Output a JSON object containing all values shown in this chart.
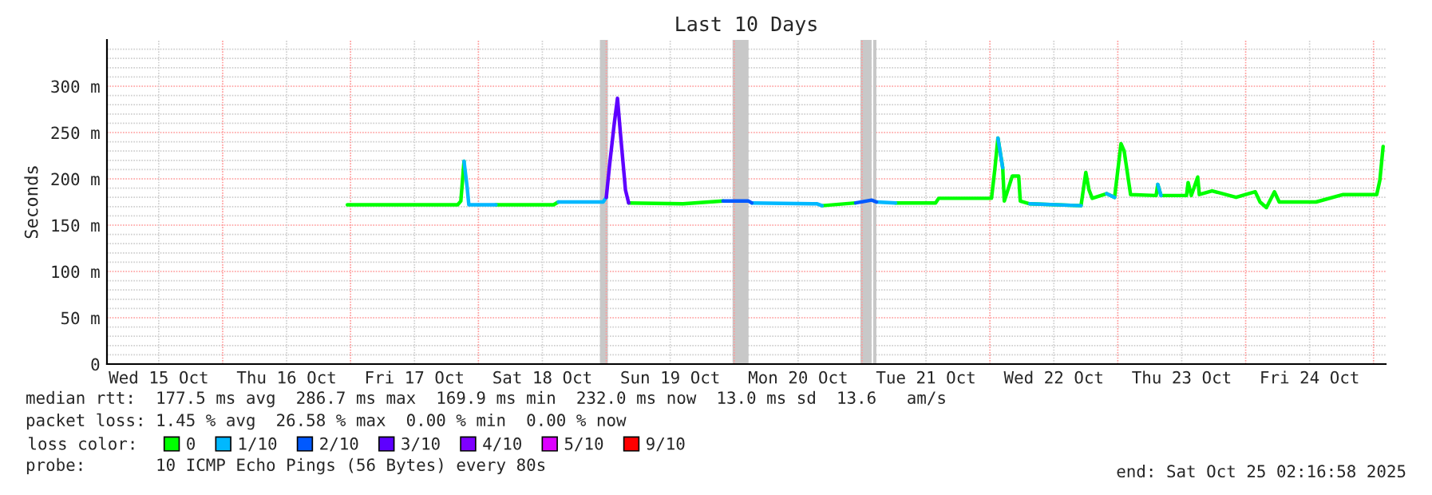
{
  "chart_data": {
    "type": "line",
    "title": "Last 10 Days",
    "ylabel": "Seconds",
    "x": [
      "2025-10-16T23:24",
      "2025-10-17T20:06",
      "2025-10-17T20:42",
      "2025-10-17T21:18",
      "2025-10-17T21:54",
      "2025-10-17T22:12",
      "2025-10-18T01:12",
      "2025-10-18T03:18",
      "2025-10-18T14:06",
      "2025-10-18T15:00",
      "2025-10-18T23:24",
      "2025-10-19T00:00",
      "2025-10-19T00:36",
      "2025-10-19T01:30",
      "2025-10-19T02:06",
      "2025-10-19T02:42",
      "2025-10-19T03:36",
      "2025-10-19T04:12",
      "2025-10-19T14:24",
      "2025-10-19T21:54",
      "2025-10-20T02:42",
      "2025-10-20T03:18",
      "2025-10-20T15:36",
      "2025-10-20T16:30",
      "2025-10-20T22:48",
      "2025-10-21T01:48",
      "2025-10-21T02:42",
      "2025-10-21T06:18",
      "2025-10-21T13:48",
      "2025-10-21T14:24",
      "2025-10-22T00:18",
      "2025-10-22T00:54",
      "2025-10-22T01:30",
      "2025-10-22T02:24",
      "2025-10-22T02:42",
      "2025-10-22T04:12",
      "2025-10-22T05:24",
      "2025-10-22T05:42",
      "2025-10-22T07:30",
      "2025-10-22T17:06",
      "2025-10-22T18:00",
      "2025-10-22T18:36",
      "2025-10-22T19:12",
      "2025-10-22T21:54",
      "2025-10-22T23:24",
      "2025-10-23T00:36",
      "2025-10-23T01:12",
      "2025-10-23T02:24",
      "2025-10-23T07:12",
      "2025-10-23T07:30",
      "2025-10-23T08:06",
      "2025-10-23T12:54",
      "2025-10-23T13:12",
      "2025-10-23T13:48",
      "2025-10-23T15:00",
      "2025-10-23T15:18",
      "2025-10-23T17:42",
      "2025-10-23T22:12",
      "2025-10-24T01:48",
      "2025-10-24T02:42",
      "2025-10-24T03:54",
      "2025-10-24T05:24",
      "2025-10-24T06:18",
      "2025-10-24T13:12",
      "2025-10-24T18:18",
      "2025-10-25T00:36",
      "2025-10-25T01:12",
      "2025-10-25T01:48"
    ],
    "series": [
      {
        "name": "0",
        "color": "#00ff00",
        "values": [
          172,
          172,
          176,
          219,
          null,
          null,
          null,
          172,
          172,
          175,
          null,
          null,
          null,
          null,
          null,
          null,
          null,
          174,
          173,
          176,
          null,
          null,
          null,
          171,
          174,
          null,
          null,
          174,
          174,
          179,
          179,
          209,
          244,
          212,
          176,
          203,
          203,
          176,
          173,
          171,
          207,
          188,
          179,
          184,
          180,
          238,
          230,
          183,
          182,
          194,
          182,
          182,
          196,
          182,
          202,
          183,
          187,
          180,
          186,
          175,
          169,
          186,
          175,
          175,
          183,
          183,
          199,
          235
        ]
      },
      {
        "name": "1/10",
        "color": "#00b8ff",
        "values": [
          null,
          null,
          null,
          219,
          190,
          172,
          172,
          172,
          null,
          175,
          175,
          180,
          null,
          null,
          null,
          null,
          null,
          null,
          null,
          null,
          null,
          174,
          173,
          171,
          null,
          null,
          175,
          174,
          null,
          null,
          null,
          null,
          244,
          212,
          null,
          null,
          null,
          null,
          173,
          171,
          null,
          null,
          null,
          184,
          180,
          null,
          null,
          null,
          null,
          194,
          182,
          null,
          null,
          null,
          null,
          null,
          null,
          null,
          null,
          null,
          null,
          null,
          null,
          null,
          null,
          null,
          null,
          null
        ]
      },
      {
        "name": "2/10",
        "color": "#0059ff",
        "values": [
          null,
          null,
          null,
          null,
          null,
          null,
          null,
          null,
          null,
          null,
          null,
          null,
          null,
          null,
          null,
          null,
          null,
          null,
          null,
          176,
          176,
          174,
          null,
          null,
          174,
          177,
          175,
          null,
          null,
          null,
          null,
          null,
          null,
          null,
          null,
          null,
          null,
          null,
          null,
          null,
          null,
          null,
          null,
          null,
          null,
          null,
          null,
          null,
          null,
          null,
          null,
          null,
          null,
          null,
          null,
          null,
          null,
          null,
          null,
          null,
          null,
          null,
          null,
          null,
          null,
          null,
          null,
          null
        ]
      },
      {
        "name": "3/10",
        "color": "#5e00ff",
        "values": [
          null,
          null,
          null,
          null,
          null,
          null,
          null,
          null,
          null,
          null,
          null,
          180,
          214,
          260,
          287,
          246,
          188,
          174,
          null,
          null,
          null,
          null,
          null,
          null,
          null,
          null,
          null,
          null,
          null,
          null,
          null,
          null,
          null,
          null,
          null,
          null,
          null,
          null,
          null,
          null,
          null,
          null,
          null,
          null,
          null,
          null,
          null,
          null,
          null,
          null,
          null,
          null,
          null,
          null,
          null,
          null,
          null,
          null,
          null,
          null,
          null,
          null,
          null,
          null,
          null,
          null,
          null,
          null
        ]
      },
      {
        "name": "4/10",
        "color": "#7e00ff",
        "values": [
          null,
          null,
          null,
          null,
          null,
          null,
          null,
          null,
          null,
          null,
          null,
          null,
          null,
          null,
          null,
          null,
          null,
          null,
          null,
          null,
          null,
          null,
          null,
          null,
          null,
          null,
          null,
          null,
          null,
          null,
          null,
          null,
          null,
          null,
          null,
          null,
          null,
          null,
          null,
          null,
          null,
          null,
          null,
          null,
          null,
          null,
          null,
          null,
          null,
          null,
          null,
          null,
          null,
          null,
          null,
          null,
          null,
          null,
          null,
          null,
          null,
          null,
          null,
          null,
          null,
          null,
          null,
          null
        ]
      },
      {
        "name": "5/10",
        "color": "#dd00ff",
        "values": [
          null,
          null,
          null,
          null,
          null,
          null,
          null,
          null,
          null,
          null,
          null,
          null,
          null,
          null,
          null,
          null,
          null,
          null,
          null,
          null,
          null,
          null,
          null,
          null,
          null,
          null,
          null,
          null,
          null,
          null,
          null,
          null,
          null,
          null,
          null,
          null,
          null,
          null,
          null,
          null,
          null,
          null,
          null,
          null,
          null,
          null,
          null,
          null,
          null,
          null,
          null,
          null,
          null,
          null,
          null,
          null,
          null,
          null,
          null,
          null,
          null,
          null,
          null,
          null,
          null,
          null,
          null,
          null
        ]
      },
      {
        "name": "9/10",
        "color": "#ff0000",
        "values": [
          null,
          null,
          null,
          null,
          null,
          null,
          null,
          null,
          null,
          null,
          null,
          null,
          null,
          null,
          null,
          null,
          null,
          null,
          null,
          null,
          null,
          null,
          null,
          null,
          null,
          null,
          null,
          null,
          null,
          null,
          null,
          null,
          null,
          null,
          null,
          null,
          null,
          null,
          null,
          null,
          null,
          null,
          null,
          null,
          null,
          null,
          null,
          null,
          null,
          null,
          null,
          null,
          null,
          null,
          null,
          null,
          null,
          null,
          null,
          null,
          null,
          null,
          null,
          null,
          null,
          null,
          null,
          null
        ]
      }
    ],
    "bands": [
      {
        "axis": "x",
        "from": "2025-10-18T22:48",
        "to": "2025-10-19T00:18",
        "color": "#c8c8c8"
      },
      {
        "axis": "x",
        "from": "2025-10-19T23:42",
        "to": "2025-10-20T02:42",
        "color": "#c8c8c8"
      },
      {
        "axis": "x",
        "from": "2025-10-20T23:42",
        "to": "2025-10-21T01:48",
        "color": "#c8c8c8"
      },
      {
        "axis": "x",
        "from": "2025-10-21T02:06",
        "to": "2025-10-21T02:42",
        "color": "#c8c8c8"
      }
    ],
    "xlim": [
      "2025-10-15T02:17",
      "2025-10-25T02:17"
    ],
    "xticks": [
      {
        "value": "2025-10-15T12:00",
        "label": "Wed 15 Oct"
      },
      {
        "value": "2025-10-16T12:00",
        "label": "Thu 16 Oct"
      },
      {
        "value": "2025-10-17T12:00",
        "label": "Fri 17 Oct"
      },
      {
        "value": "2025-10-18T12:00",
        "label": "Sat 18 Oct"
      },
      {
        "value": "2025-10-19T12:00",
        "label": "Sun 19 Oct"
      },
      {
        "value": "2025-10-20T12:00",
        "label": "Mon 20 Oct"
      },
      {
        "value": "2025-10-21T12:00",
        "label": "Tue 21 Oct"
      },
      {
        "value": "2025-10-22T12:00",
        "label": "Wed 22 Oct"
      },
      {
        "value": "2025-10-23T12:00",
        "label": "Thu 23 Oct"
      },
      {
        "value": "2025-10-24T12:00",
        "label": "Fri 24 Oct"
      },
      {
        "value": "2025-10-16T00:00",
        "label": null
      },
      {
        "value": "2025-10-17T00:00",
        "label": null
      },
      {
        "value": "2025-10-18T00:00",
        "label": null
      },
      {
        "value": "2025-10-19T00:00",
        "label": null
      },
      {
        "value": "2025-10-20T00:00",
        "label": null
      },
      {
        "value": "2025-10-21T00:00",
        "label": null
      },
      {
        "value": "2025-10-22T00:00",
        "label": null
      },
      {
        "value": "2025-10-23T00:00",
        "label": null
      },
      {
        "value": "2025-10-24T00:00",
        "label": null
      },
      {
        "value": "2025-10-25T00:00",
        "label": null
      }
    ],
    "ylim": [
      0,
      350
    ],
    "yticks": [
      0,
      {
        "value": 50,
        "label": "50 m"
      },
      {
        "value": 100,
        "label": "100 m"
      },
      {
        "value": 150,
        "label": "150 m"
      },
      {
        "value": 200,
        "label": "200 m"
      },
      {
        "value": 250,
        "label": "250 m"
      },
      {
        "value": 300,
        "label": "300 m"
      },
      {
        "value": 10,
        "label": null
      },
      {
        "value": 20,
        "label": null
      },
      {
        "value": 30,
        "label": null
      },
      {
        "value": 40,
        "label": null
      },
      {
        "value": 60,
        "label": null
      },
      {
        "value": 70,
        "label": null
      },
      {
        "value": 80,
        "label": null
      },
      {
        "value": 90,
        "label": null
      },
      {
        "value": 110,
        "label": null
      },
      {
        "value": 120,
        "label": null
      },
      {
        "value": 130,
        "label": null
      },
      {
        "value": 140,
        "label": null
      },
      {
        "value": 160,
        "label": null
      },
      {
        "value": 170,
        "label": null
      },
      {
        "value": 180,
        "label": null
      },
      {
        "value": 190,
        "label": null
      },
      {
        "value": 210,
        "label": null
      },
      {
        "value": 220,
        "label": null
      },
      {
        "value": 230,
        "label": null
      },
      {
        "value": 240,
        "label": null
      },
      {
        "value": 260,
        "label": null
      },
      {
        "value": 270,
        "label": null
      },
      {
        "value": 280,
        "label": null
      },
      {
        "value": 290,
        "label": null
      },
      {
        "value": 310,
        "label": null
      },
      {
        "value": 320,
        "label": null
      },
      {
        "value": 330,
        "label": null
      },
      {
        "value": 340,
        "label": null
      }
    ],
    "grid": true,
    "legend": "bottom",
    "legend_title": "loss color:",
    "line_style": "solid",
    "marker": "none",
    "annotations": [
      "median rtt:  177.5 ms avg  286.7 ms max  169.9 ms min  232.0 ms now  13.0 ms sd  13.6   am/s",
      "packet loss: 1.45 % avg  26.58 % max  0.00 % min  0.00 % now",
      "probe:       10 ICMP Echo Pings (56 Bytes) every 80s",
      "end: Sat Oct 25 02:16:58 2025"
    ]
  }
}
